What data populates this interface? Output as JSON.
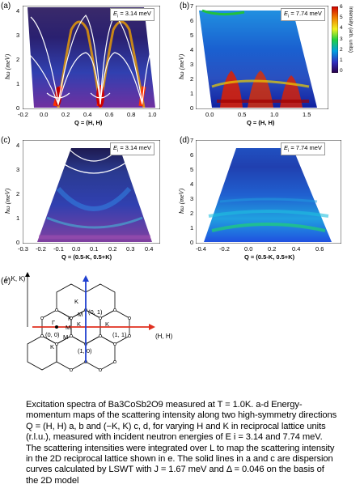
{
  "panels": {
    "a": {
      "label": "(a)",
      "ei": "E",
      "ei_sub": "i",
      "ei_val": " = 3.14 meV",
      "yticks": [
        "4",
        "3",
        "2",
        "1",
        "0"
      ],
      "xticks": [
        "-0.2",
        "0.0",
        "0.2",
        "0.4",
        "0.6",
        "0.8",
        "1.0"
      ],
      "ylabel": "ħω (meV)",
      "xlabel": "Q = (H, H)"
    },
    "b": {
      "label": "(b)",
      "ei": "E",
      "ei_sub": "i",
      "ei_val": " = 7.74 meV",
      "yticks": [
        "7",
        "6",
        "5",
        "4",
        "3",
        "2",
        "1",
        "0"
      ],
      "xticks": [
        "0.0",
        "0.5",
        "1.0",
        "1.5"
      ],
      "ylabel": "ħω (meV)",
      "xlabel": "Q = (H, H)"
    },
    "c": {
      "label": "(c)",
      "ei": "E",
      "ei_sub": "i",
      "ei_val": " = 3.14 meV",
      "yticks": [
        "4",
        "3",
        "2",
        "1",
        "0"
      ],
      "xticks": [
        "-0.3",
        "-0.2",
        "-0.1",
        "0.0",
        "0.1",
        "0.2",
        "0.3",
        "0.4"
      ],
      "ylabel": "ħω (meV)",
      "xlabel": "Q = (0.5-K, 0.5+K)"
    },
    "d": {
      "label": "(d)",
      "ei": "E",
      "ei_sub": "i",
      "ei_val": " = 7.74 meV",
      "yticks": [
        "7",
        "6",
        "5",
        "4",
        "3",
        "2",
        "1",
        "0"
      ],
      "xticks": [
        "-0.4",
        "-0.2",
        "0.0",
        "0.2",
        "0.4",
        "0.6"
      ],
      "ylabel": "ħω (meV)",
      "xlabel": "Q = (0.5-K, 0.5+K)"
    },
    "e": {
      "label": "(e)",
      "axis_v": "(- K, K)",
      "axis_h": "(H, H)",
      "points": {
        "origin": "(0, 0)",
        "p01": "(0, 1)",
        "p11": "(1, 1)",
        "p10": "(1, 0)"
      },
      "sym_gamma": "Γ",
      "sym_k": "K",
      "sym_m": "M"
    }
  },
  "colorbar": {
    "label": "Intensity (arb. units)",
    "ticks": [
      "6",
      "5",
      "4",
      "3",
      "2",
      "1",
      "0"
    ],
    "colors": [
      "#2a004a",
      "#3030c0",
      "#00a0e0",
      "#20d040",
      "#f0f020",
      "#f08000",
      "#d00000"
    ]
  },
  "caption": "Excitation spectra of Ba3CoSb2O9 measured at T = 1.0K. a-d Energy-momentum maps of the scattering intensity along two high-symmetry directions Q = (H, H) a, b and (−K, K) c, d, for varying H and K in reciprocal lattice units (r.l.u.), measured with incident neutron energies of E i = 3.14 and 7.74 meV. The scattering intensities were integrated over L to map the scattering intensity in the 2D reciprocal lattice shown in e. The solid lines in a and c are dispersion curves calculated by LSWT with J = 1.67 meV and Δ = 0.046 on the basis of the 2D model"
}
